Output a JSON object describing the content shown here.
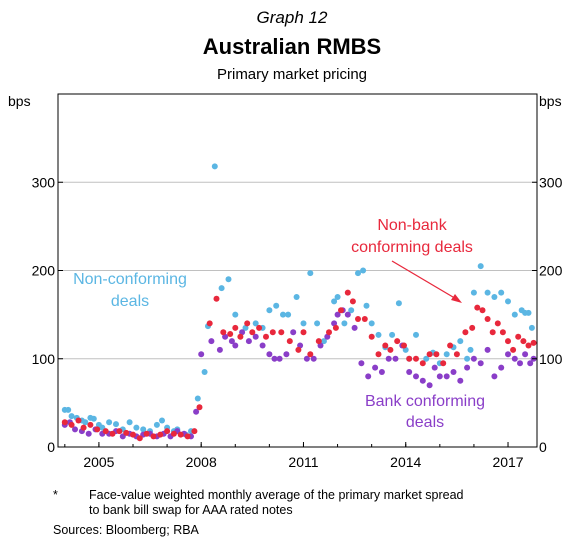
{
  "header": {
    "graph_label": "Graph 12",
    "title": "Australian RMBS",
    "subtitle": "Primary market pricing"
  },
  "footnote": {
    "marker": "*",
    "line1": "Face-value weighted monthly average of the primary market spread",
    "line2": "to bank bill swap for AAA rated notes",
    "sources": "Sources:   Bloomberg; RBA"
  },
  "chart_data": {
    "type": "scatter",
    "y_unit_left": "bps",
    "y_unit_right": "bps",
    "ylim": [
      0,
      400
    ],
    "yticks": [
      0,
      100,
      200,
      300
    ],
    "xlim": [
      2003.8,
      2017.85
    ],
    "xticks": [
      2005,
      2008,
      2011,
      2014,
      2017
    ],
    "xtick_labels": [
      "2005",
      "2008",
      "2011",
      "2014",
      "2017"
    ],
    "grid": true,
    "colors": {
      "non_conforming": "#5bb6e3",
      "bank_conforming": "#8a3ec8",
      "nonbank_conforming": "#e8283c",
      "arrow": "#e8283c"
    },
    "annotations": [
      {
        "series": "non_conforming",
        "lines": [
          "Non-conforming",
          "deals"
        ]
      },
      {
        "series": "nonbank_conforming",
        "lines": [
          "Non-bank",
          "conforming deals"
        ]
      },
      {
        "series": "bank_conforming",
        "lines": [
          "Bank conforming",
          "deals"
        ]
      }
    ],
    "series": [
      {
        "key": "non_conforming",
        "name": "Non-conforming deals",
        "x": [
          2004.0,
          2004.1,
          2004.2,
          2004.35,
          2004.5,
          2004.6,
          2004.75,
          2004.85,
          2005.0,
          2005.1,
          2005.3,
          2005.5,
          2005.7,
          2005.9,
          2006.1,
          2006.3,
          2006.5,
          2006.7,
          2006.85,
          2007.0,
          2007.2,
          2007.3,
          2007.55,
          2007.7,
          2007.9,
          2008.1,
          2008.2,
          2008.4,
          2008.6,
          2008.8,
          2009.0,
          2009.3,
          2009.6,
          2009.8,
          2010.0,
          2010.2,
          2010.4,
          2010.55,
          2010.8,
          2011.0,
          2011.2,
          2011.4,
          2011.6,
          2011.9,
          2012.0,
          2012.2,
          2012.4,
          2012.6,
          2012.75,
          2012.85,
          2013.0,
          2013.2,
          2013.4,
          2013.6,
          2013.8,
          2014.0,
          2014.1,
          2014.3,
          2014.6,
          2014.8,
          2015.0,
          2015.2,
          2015.4,
          2015.6,
          2015.8,
          2015.9,
          2016.0,
          2016.2,
          2016.4,
          2016.6,
          2016.8,
          2017.0,
          2017.2,
          2017.4,
          2017.5,
          2017.6,
          2017.7
        ],
        "y": [
          42,
          42,
          35,
          33,
          30,
          28,
          33,
          32,
          25,
          22,
          28,
          26,
          20,
          28,
          22,
          20,
          18,
          25,
          30,
          22,
          18,
          20,
          14,
          18,
          55,
          85,
          137,
          318,
          180,
          190,
          150,
          135,
          140,
          135,
          155,
          160,
          150,
          150,
          170,
          140,
          197,
          140,
          120,
          165,
          170,
          140,
          155,
          197,
          200,
          160,
          140,
          127,
          113,
          127,
          163,
          110,
          100,
          127,
          100,
          107,
          95,
          105,
          113,
          120,
          100,
          110,
          175,
          205,
          175,
          170,
          175,
          165,
          150,
          155,
          152,
          152,
          135
        ]
      },
      {
        "key": "bank_conforming",
        "name": "Bank conforming deals",
        "x": [
          2004.0,
          2004.15,
          2004.3,
          2004.5,
          2004.7,
          2004.9,
          2005.1,
          2005.3,
          2005.5,
          2005.7,
          2005.9,
          2006.1,
          2006.3,
          2006.5,
          2006.7,
          2006.9,
          2007.1,
          2007.3,
          2007.5,
          2007.7,
          2007.85,
          2008.0,
          2008.3,
          2008.55,
          2008.7,
          2008.9,
          2009.0,
          2009.2,
          2009.4,
          2009.6,
          2009.8,
          2010.0,
          2010.15,
          2010.3,
          2010.5,
          2010.7,
          2010.9,
          2011.1,
          2011.3,
          2011.5,
          2011.7,
          2011.9,
          2012.0,
          2012.15,
          2012.3,
          2012.5,
          2012.7,
          2012.9,
          2013.1,
          2013.3,
          2013.5,
          2013.7,
          2013.9,
          2014.1,
          2014.3,
          2014.5,
          2014.7,
          2014.85,
          2015.0,
          2015.2,
          2015.4,
          2015.6,
          2015.8,
          2016.0,
          2016.2,
          2016.4,
          2016.6,
          2016.8,
          2017.0,
          2017.2,
          2017.35,
          2017.5,
          2017.65,
          2017.75
        ],
        "y": [
          25,
          28,
          20,
          18,
          15,
          20,
          15,
          15,
          18,
          12,
          15,
          12,
          14,
          15,
          12,
          15,
          12,
          18,
          15,
          12,
          40,
          105,
          120,
          110,
          125,
          120,
          115,
          130,
          120,
          125,
          115,
          105,
          100,
          100,
          105,
          130,
          115,
          100,
          100,
          115,
          125,
          140,
          150,
          155,
          150,
          135,
          95,
          80,
          90,
          85,
          100,
          100,
          115,
          85,
          80,
          75,
          70,
          90,
          80,
          80,
          85,
          75,
          90,
          100,
          95,
          110,
          80,
          90,
          105,
          100,
          95,
          105,
          95,
          100
        ]
      },
      {
        "key": "nonbank_conforming",
        "name": "Non-bank conforming deals",
        "x": [
          2004.0,
          2004.2,
          2004.4,
          2004.55,
          2004.75,
          2004.95,
          2005.2,
          2005.4,
          2005.6,
          2005.8,
          2006.0,
          2006.2,
          2006.4,
          2006.6,
          2006.8,
          2007.0,
          2007.2,
          2007.4,
          2007.6,
          2007.8,
          2007.95,
          2008.25,
          2008.45,
          2008.65,
          2008.85,
          2009.0,
          2009.15,
          2009.35,
          2009.5,
          2009.7,
          2009.9,
          2010.1,
          2010.35,
          2010.6,
          2010.85,
          2011.0,
          2011.2,
          2011.45,
          2011.75,
          2011.95,
          2012.1,
          2012.3,
          2012.45,
          2012.6,
          2012.8,
          2013.0,
          2013.2,
          2013.4,
          2013.55,
          2013.75,
          2013.95,
          2014.1,
          2014.3,
          2014.5,
          2014.7,
          2014.9,
          2015.1,
          2015.3,
          2015.5,
          2015.75,
          2015.95,
          2016.1,
          2016.25,
          2016.4,
          2016.55,
          2016.7,
          2016.85,
          2017.0,
          2017.15,
          2017.3,
          2017.45,
          2017.6,
          2017.75
        ],
        "y": [
          28,
          25,
          30,
          22,
          25,
          20,
          18,
          15,
          18,
          16,
          14,
          10,
          15,
          12,
          14,
          18,
          15,
          14,
          12,
          18,
          45,
          140,
          168,
          130,
          128,
          135,
          125,
          140,
          130,
          135,
          125,
          130,
          130,
          120,
          110,
          130,
          105,
          120,
          130,
          135,
          155,
          175,
          165,
          145,
          145,
          125,
          105,
          115,
          110,
          120,
          115,
          100,
          100,
          95,
          105,
          105,
          95,
          115,
          105,
          130,
          135,
          158,
          155,
          145,
          130,
          140,
          130,
          120,
          110,
          125,
          120,
          115,
          118
        ]
      }
    ]
  }
}
